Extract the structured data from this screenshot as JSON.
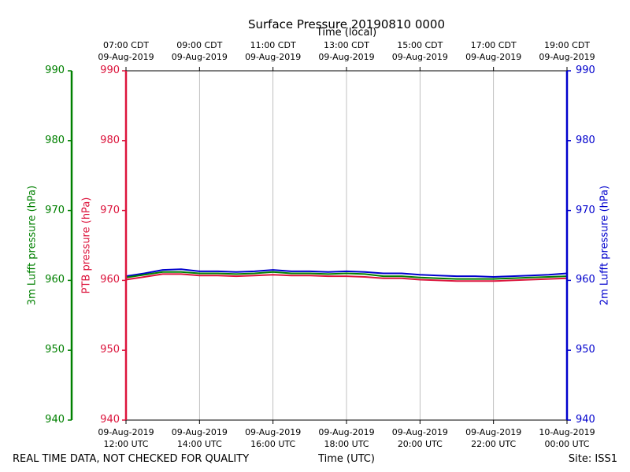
{
  "chart_data": {
    "type": "line",
    "title": "Surface Pressure 20190810 0000",
    "top_axis_label": "Time (local)",
    "xlabel": "Time (UTC)",
    "footer_left": "REAL TIME DATA, NOT CHECKED FOR QUALITY",
    "footer_right": "Site: ISS1",
    "x_range_utc_hours": [
      12,
      24
    ],
    "ylim": [
      940,
      990
    ],
    "y_ticks": [
      940,
      950,
      960,
      970,
      980,
      990
    ],
    "grid": "vertical",
    "axes": [
      {
        "position": "left-outer",
        "label": "3m Lufft pressure (hPa)",
        "color": "#008000"
      },
      {
        "position": "left-inner",
        "label": "PTB pressure (hPa)",
        "color": "#dc143c"
      },
      {
        "position": "right",
        "label": "2m Lufft pressure (hPa)",
        "color": "#0000cd"
      }
    ],
    "bottom_ticks": [
      {
        "hour": 12,
        "date": "09-Aug-2019",
        "time": "12:00 UTC"
      },
      {
        "hour": 14,
        "date": "09-Aug-2019",
        "time": "14:00 UTC"
      },
      {
        "hour": 16,
        "date": "09-Aug-2019",
        "time": "16:00 UTC"
      },
      {
        "hour": 18,
        "date": "09-Aug-2019",
        "time": "18:00 UTC"
      },
      {
        "hour": 20,
        "date": "09-Aug-2019",
        "time": "20:00 UTC"
      },
      {
        "hour": 22,
        "date": "09-Aug-2019",
        "time": "22:00 UTC"
      },
      {
        "hour": 24,
        "date": "10-Aug-2019",
        "time": "00:00 UTC"
      }
    ],
    "top_ticks": [
      {
        "hour": 12,
        "time": "07:00 CDT",
        "date": "09-Aug-2019"
      },
      {
        "hour": 14,
        "time": "09:00 CDT",
        "date": "09-Aug-2019"
      },
      {
        "hour": 16,
        "time": "11:00 CDT",
        "date": "09-Aug-2019"
      },
      {
        "hour": 18,
        "time": "13:00 CDT",
        "date": "09-Aug-2019"
      },
      {
        "hour": 20,
        "time": "15:00 CDT",
        "date": "09-Aug-2019"
      },
      {
        "hour": 22,
        "time": "17:00 CDT",
        "date": "09-Aug-2019"
      },
      {
        "hour": 24,
        "time": "19:00 CDT",
        "date": "09-Aug-2019"
      }
    ],
    "series": [
      {
        "color": "#0000cd",
        "x": [
          12,
          12.5,
          13,
          13.5,
          14,
          14.5,
          15,
          15.5,
          16,
          16.5,
          17,
          17.5,
          18,
          18.5,
          19,
          19.5,
          20,
          20.5,
          21,
          21.5,
          22,
          22.5,
          23,
          23.5,
          24
        ],
        "y": [
          960.6,
          961.0,
          961.5,
          961.6,
          961.3,
          961.3,
          961.2,
          961.3,
          961.5,
          961.3,
          961.3,
          961.2,
          961.3,
          961.2,
          961.0,
          961.0,
          960.8,
          960.7,
          960.6,
          960.6,
          960.5,
          960.6,
          960.7,
          960.8,
          961.0
        ]
      },
      {
        "color": "#008000",
        "x": [
          12,
          12.5,
          13,
          13.5,
          14,
          14.5,
          15,
          15.5,
          16,
          16.5,
          17,
          17.5,
          18,
          18.5,
          19,
          19.5,
          20,
          20.5,
          21,
          21.5,
          22,
          22.5,
          23,
          23.5,
          24
        ],
        "y": [
          960.4,
          960.8,
          961.2,
          961.2,
          961.0,
          961.0,
          960.9,
          961.0,
          961.2,
          961.0,
          961.0,
          960.9,
          961.0,
          960.9,
          960.6,
          960.6,
          960.4,
          960.3,
          960.2,
          960.2,
          960.2,
          960.3,
          960.4,
          960.5,
          960.6
        ]
      },
      {
        "color": "#dc143c",
        "x": [
          12,
          12.5,
          13,
          13.5,
          14,
          14.5,
          15,
          15.5,
          16,
          16.5,
          17,
          17.5,
          18,
          18.5,
          19,
          19.5,
          20,
          20.5,
          21,
          21.5,
          22,
          22.5,
          23,
          23.5,
          24
        ],
        "y": [
          960.1,
          960.5,
          960.9,
          960.9,
          960.7,
          960.7,
          960.6,
          960.7,
          960.8,
          960.7,
          960.7,
          960.6,
          960.6,
          960.5,
          960.3,
          960.3,
          960.1,
          960.0,
          959.9,
          959.9,
          959.9,
          960.0,
          960.1,
          960.2,
          960.3
        ]
      }
    ]
  }
}
